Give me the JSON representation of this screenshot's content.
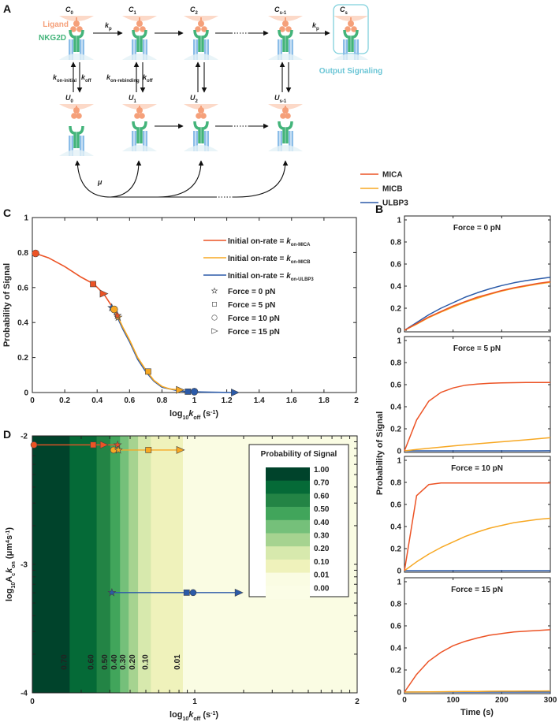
{
  "panel_labels": [
    "A",
    "B",
    "C",
    "D"
  ],
  "diagram": {
    "ligand_label": "Ligand",
    "receptor_label": "NKG2D",
    "bound_states": [
      {
        "symbol": "C",
        "sub": "0"
      },
      {
        "symbol": "C",
        "sub": "1"
      },
      {
        "symbol": "C",
        "sub": "2"
      },
      {
        "symbol": "C",
        "sub": "s-1"
      },
      {
        "symbol": "C",
        "sub": "s"
      }
    ],
    "unbound_states": [
      {
        "symbol": "U",
        "sub": "0"
      },
      {
        "symbol": "U",
        "sub": "1"
      },
      {
        "symbol": "U",
        "sub": "2"
      },
      {
        "symbol": "U",
        "sub": "s-1"
      }
    ],
    "rates": {
      "kp": {
        "k": "k",
        "sub": "p"
      },
      "kon_initial": {
        "k": "k",
        "sub": "on-initial"
      },
      "kon_rebinding": {
        "k": "k",
        "sub": "on-rebinding"
      },
      "koff": {
        "k": "k",
        "sub": "off"
      }
    },
    "mu": "μ",
    "output_label": "Output Signaling"
  },
  "legend": [
    {
      "name": "MICA",
      "color": "#ec5325"
    },
    {
      "name": "MICB",
      "color": "#f7a823"
    },
    {
      "name": "ULBP3",
      "color": "#2b5aa8"
    }
  ],
  "chart_data": [
    {
      "panel": "C",
      "type": "line",
      "xlabel": [
        {
          "t": "log"
        },
        {
          "t": "10",
          "sub": true
        },
        {
          "t": "k",
          "it": true
        },
        {
          "t": "off",
          "sub": true
        },
        {
          "t": " (s"
        },
        {
          "t": "-1",
          "sup": true
        },
        {
          "t": ")"
        }
      ],
      "ylabel": "Probability of Signal",
      "xlim": [
        0,
        2
      ],
      "ylim": [
        0,
        1
      ],
      "xticks": [
        0,
        0.2,
        0.4,
        0.6,
        0.8,
        1,
        1.2,
        1.4,
        1.6,
        1.8,
        2
      ],
      "yticks": [
        0,
        0.2,
        0.4,
        0.6,
        0.8,
        1
      ],
      "series": [
        {
          "name": "Initial on-rate = ",
          "k": "k",
          "sub": "on-MICA",
          "color": "#ec5325",
          "x": [
            0.02,
            0.1,
            0.2,
            0.3,
            0.38,
            0.44,
            0.5,
            0.53
          ],
          "y": [
            0.795,
            0.77,
            0.72,
            0.66,
            0.62,
            0.565,
            0.48,
            0.44
          ],
          "markers": [
            {
              "force": 0,
              "x": 0.525,
              "y": 0.44
            },
            {
              "force": 5,
              "x": 0.375,
              "y": 0.62
            },
            {
              "force": 10,
              "x": 0.02,
              "y": 0.795
            },
            {
              "force": 15,
              "x": 0.44,
              "y": 0.565
            }
          ]
        },
        {
          "name": "Initial on-rate = ",
          "k": "k",
          "sub": "on-MICB",
          "color": "#f7a823",
          "x": [
            0.5,
            0.53,
            0.56,
            0.6,
            0.65,
            0.7,
            0.75,
            0.8,
            0.85,
            0.91
          ],
          "y": [
            0.475,
            0.43,
            0.37,
            0.3,
            0.2,
            0.13,
            0.07,
            0.035,
            0.02,
            0.015
          ],
          "markers": [
            {
              "force": 0,
              "x": 0.53,
              "y": 0.43
            },
            {
              "force": 5,
              "x": 0.715,
              "y": 0.12
            },
            {
              "force": 10,
              "x": 0.505,
              "y": 0.475
            },
            {
              "force": 15,
              "x": 0.91,
              "y": 0.015
            }
          ]
        },
        {
          "name": "Initial on-rate = ",
          "k": "k",
          "sub": "on-ULBP3",
          "color": "#2b5aa8",
          "x": [
            0.49,
            0.53,
            0.56,
            0.6,
            0.65,
            0.7,
            0.75,
            0.8,
            0.9,
            0.96,
            1.0,
            1.1,
            1.25
          ],
          "y": [
            0.485,
            0.42,
            0.36,
            0.29,
            0.19,
            0.12,
            0.065,
            0.03,
            0.01,
            0.005,
            0.004,
            0.002,
            0
          ],
          "markers": [
            {
              "force": 0,
              "x": 0.49,
              "y": 0.485
            },
            {
              "force": 5,
              "x": 0.96,
              "y": 0.005
            },
            {
              "force": 10,
              "x": 1.0,
              "y": 0.005
            },
            {
              "force": 15,
              "x": 1.25,
              "y": 0
            }
          ]
        }
      ],
      "marker_legend": [
        {
          "label": "Force = 0 pN",
          "shape": "star"
        },
        {
          "label": "Force = 5 pN",
          "shape": "square"
        },
        {
          "label": "Force = 10 pN",
          "shape": "circle"
        },
        {
          "label": "Force = 15 pN",
          "shape": "triangle"
        }
      ],
      "legend_position": "top-right"
    },
    {
      "panel": "B",
      "type": "line",
      "xlabel": "Time (s)",
      "ylabel": "Probability of Signal",
      "xlim": [
        0,
        300
      ],
      "ylim": [
        0,
        1
      ],
      "xticks": [
        0,
        100,
        200,
        300
      ],
      "yticks": [
        0,
        0.2,
        0.4,
        0.6,
        0.8,
        1
      ],
      "t": [
        0,
        25,
        50,
        75,
        100,
        125,
        150,
        175,
        200,
        225,
        250,
        275,
        300
      ],
      "subplots": [
        {
          "title": "Force = 0 pN",
          "series": {
            "MICA": [
              0,
              0.06,
              0.12,
              0.17,
              0.22,
              0.26,
              0.3,
              0.33,
              0.36,
              0.385,
              0.405,
              0.425,
              0.44
            ],
            "MICB": [
              0,
              0.055,
              0.115,
              0.165,
              0.21,
              0.255,
              0.29,
              0.325,
              0.355,
              0.38,
              0.4,
              0.42,
              0.435
            ],
            "ULBP3": [
              0,
              0.07,
              0.14,
              0.2,
              0.25,
              0.3,
              0.34,
              0.375,
              0.405,
              0.43,
              0.45,
              0.465,
              0.48
            ]
          }
        },
        {
          "title": "Force = 5 pN",
          "series": {
            "MICA": [
              0,
              0.28,
              0.45,
              0.53,
              0.57,
              0.595,
              0.605,
              0.612,
              0.616,
              0.618,
              0.619,
              0.62,
              0.62
            ],
            "MICB": [
              0,
              0.012,
              0.023,
              0.034,
              0.044,
              0.054,
              0.064,
              0.073,
              0.082,
              0.091,
              0.1,
              0.11,
              0.12
            ],
            "ULBP3": [
              0,
              0,
              0,
              0,
              0,
              0,
              0,
              0,
              0,
              0,
              0,
              0,
              0.001
            ]
          }
        },
        {
          "title": "Force = 10 pN",
          "series": {
            "MICA": [
              0,
              0.68,
              0.78,
              0.795,
              0.795,
              0.795,
              0.795,
              0.795,
              0.795,
              0.795,
              0.795,
              0.795,
              0.795
            ],
            "MICB": [
              0,
              0.08,
              0.15,
              0.21,
              0.26,
              0.31,
              0.35,
              0.385,
              0.41,
              0.435,
              0.45,
              0.465,
              0.475
            ],
            "ULBP3": [
              0,
              0,
              0,
              0,
              0,
              0,
              0,
              0,
              0,
              0,
              0,
              0,
              0
            ]
          }
        },
        {
          "title": "Force = 15 pN",
          "series": {
            "MICA": [
              0,
              0.16,
              0.28,
              0.36,
              0.42,
              0.46,
              0.49,
              0.515,
              0.53,
              0.545,
              0.552,
              0.558,
              0.565
            ],
            "MICB": [
              0,
              0.001,
              0.002,
              0.003,
              0.004,
              0.005,
              0.006,
              0.007,
              0.008,
              0.008,
              0.009,
              0.009,
              0.01
            ],
            "ULBP3": [
              0,
              0,
              0,
              0,
              0,
              0,
              0,
              0,
              0,
              0,
              0,
              0,
              0
            ]
          }
        }
      ]
    },
    {
      "panel": "D",
      "type": "heatmap",
      "xlabel": [
        {
          "t": "log"
        },
        {
          "t": "10",
          "sub": true
        },
        {
          "t": "k",
          "it": true
        },
        {
          "t": "off",
          "sub": true
        },
        {
          "t": " (s"
        },
        {
          "t": "-1",
          "sup": true
        },
        {
          "t": ")"
        }
      ],
      "ylabel": [
        {
          "t": "log"
        },
        {
          "t": "10",
          "sub": true
        },
        {
          "t": "A"
        },
        {
          "t": "c",
          "sub": true
        },
        {
          "t": "k",
          "it": true
        },
        {
          "t": "on",
          "sub": true
        },
        {
          "t": " (μm"
        },
        {
          "t": "4",
          "sup": true
        },
        {
          "t": "s"
        },
        {
          "t": "-1",
          "sup": true
        },
        {
          "t": ")"
        }
      ],
      "xlim": [
        0,
        2
      ],
      "ylim": [
        -4,
        -2
      ],
      "xticks": [
        0,
        1,
        2
      ],
      "yticks": [
        -2,
        -3,
        -4
      ],
      "colorbar_title": "Probability of Signal",
      "levels": [
        {
          "label": "1.00",
          "color": "#00432b"
        },
        {
          "label": "0.70",
          "color": "#056a37"
        },
        {
          "label": "0.60",
          "color": "#238445"
        },
        {
          "label": "0.50",
          "color": "#41a55b"
        },
        {
          "label": "0.40",
          "color": "#75c07a"
        },
        {
          "label": "0.30",
          "color": "#a6d390"
        },
        {
          "label": "0.20",
          "color": "#d7e9ad"
        },
        {
          "label": "0.10",
          "color": "#eff2bb"
        },
        {
          "label": "0.01",
          "color": "#fafce3"
        },
        {
          "label": "0.00",
          "color": "#fbfde6"
        }
      ],
      "contours": [
        {
          "label": "0.70",
          "x": 0.23
        },
        {
          "label": "0.60",
          "x": 0.396
        },
        {
          "label": "0.50",
          "x": 0.48
        },
        {
          "label": "0.40",
          "x": 0.54
        },
        {
          "label": "0.30",
          "x": 0.593
        },
        {
          "label": "0.20",
          "x": 0.651
        },
        {
          "label": "0.10",
          "x": 0.73
        },
        {
          "label": "0.01",
          "x": 0.927
        }
      ],
      "tracks": [
        {
          "name": "MICA",
          "color": "#ec5325",
          "y": -2.07,
          "markers": [
            {
              "force": 10,
              "x": 0.01
            },
            {
              "force": 5,
              "x": 0.375
            },
            {
              "force": 15,
              "x": 0.44
            },
            {
              "force": 0,
              "x": 0.525
            }
          ]
        },
        {
          "name": "MICB",
          "color": "#f7a823",
          "y": -2.11,
          "markers": [
            {
              "force": 10,
              "x": 0.5
            },
            {
              "force": 0,
              "x": 0.53
            },
            {
              "force": 5,
              "x": 0.715
            },
            {
              "force": 15,
              "x": 0.91
            }
          ]
        },
        {
          "name": "ULBP3",
          "color": "#2b5aa8",
          "y": -3.22,
          "markers": [
            {
              "force": 0,
              "x": 0.49
            },
            {
              "force": 5,
              "x": 0.95
            },
            {
              "force": 10,
              "x": 0.99
            },
            {
              "force": 15,
              "x": 1.27
            }
          ]
        }
      ]
    }
  ]
}
